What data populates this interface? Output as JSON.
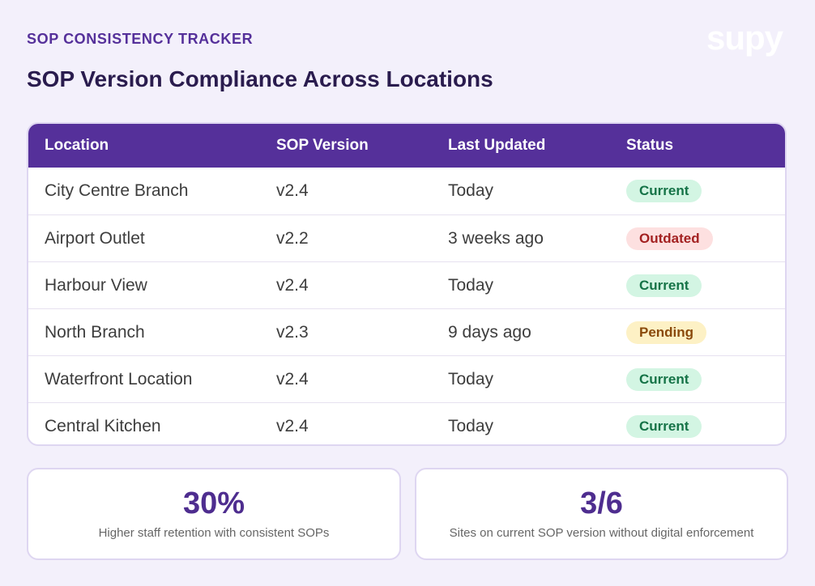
{
  "header": {
    "eyebrow": "SOP CONSISTENCY TRACKER",
    "title": "SOP Version Compliance Across Locations",
    "logo": "supy"
  },
  "table": {
    "columns": [
      "Location",
      "SOP Version",
      "Last Updated",
      "Status"
    ],
    "rows": [
      {
        "location": "City Centre Branch",
        "version": "v2.4",
        "updated": "Today",
        "status": "Current"
      },
      {
        "location": "Airport Outlet",
        "version": "v2.2",
        "updated": "3 weeks ago",
        "status": "Outdated"
      },
      {
        "location": "Harbour View",
        "version": "v2.4",
        "updated": "Today",
        "status": "Current"
      },
      {
        "location": "North Branch",
        "version": "v2.3",
        "updated": "9 days ago",
        "status": "Pending"
      },
      {
        "location": "Waterfront Location",
        "version": "v2.4",
        "updated": "Today",
        "status": "Current"
      },
      {
        "location": "Central Kitchen",
        "version": "v2.4",
        "updated": "Today",
        "status": "Current"
      }
    ]
  },
  "status_colors": {
    "Current": {
      "bg": "#d3f5e3",
      "fg": "#157347"
    },
    "Outdated": {
      "bg": "#fde0e0",
      "fg": "#a32121"
    },
    "Pending": {
      "bg": "#fdf1c5",
      "fg": "#8a4a0b"
    }
  },
  "stats": [
    {
      "value": "30%",
      "label": "Higher staff retention with consistent SOPs"
    },
    {
      "value": "3/6",
      "label": "Sites on current SOP version without digital enforcement"
    }
  ],
  "colors": {
    "accent": "#55309a",
    "background": "#f3f0fb"
  }
}
